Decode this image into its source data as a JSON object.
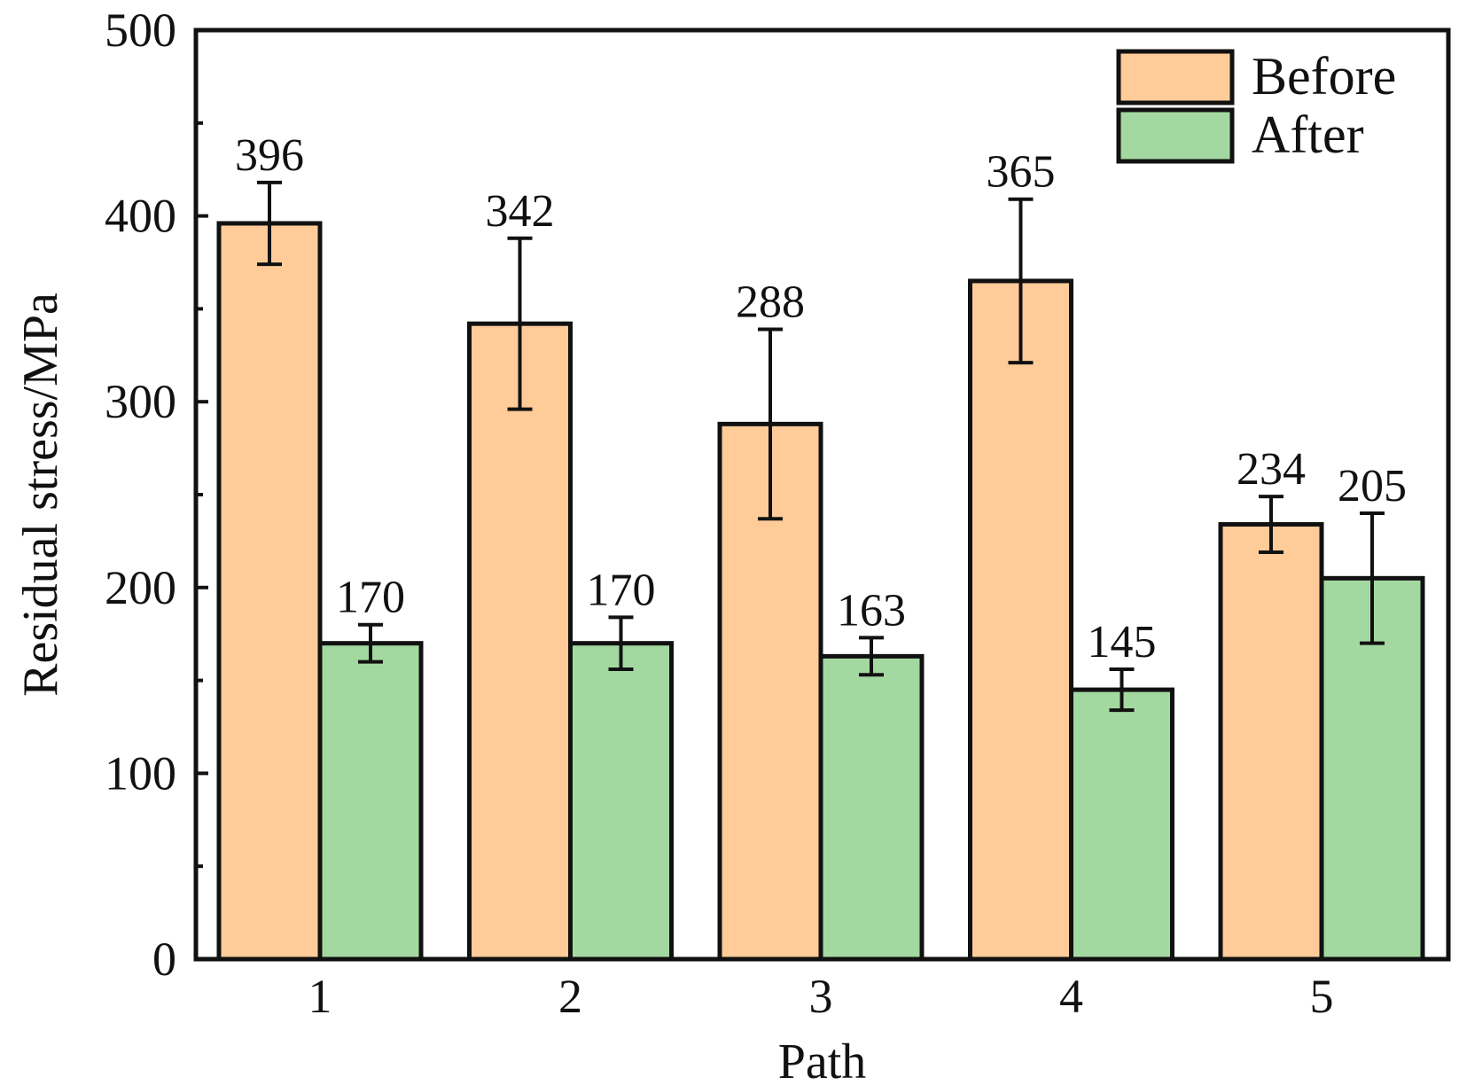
{
  "chart_data": {
    "type": "bar",
    "categories": [
      "1",
      "2",
      "3",
      "4",
      "5"
    ],
    "series": [
      {
        "name": "Before",
        "color": "#FFCC99",
        "values": [
          396,
          342,
          288,
          365,
          234
        ],
        "errors": [
          22,
          46,
          51,
          44,
          15
        ]
      },
      {
        "name": "After",
        "color": "#A3D9A0",
        "values": [
          170,
          170,
          163,
          145,
          205
        ],
        "errors": [
          10,
          14,
          10,
          11,
          35
        ]
      }
    ],
    "xlabel": "Path",
    "ylabel": "Residual stress/MPa",
    "ylim": [
      0,
      500
    ],
    "yticks": [
      0,
      100,
      200,
      300,
      400,
      500
    ],
    "grid": false,
    "legend_position": "top-right"
  }
}
